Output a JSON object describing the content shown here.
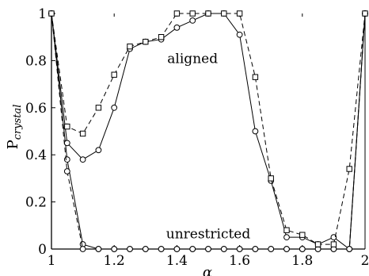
{
  "chart_data": {
    "type": "line",
    "xlabel": "α",
    "ylabel_main": "P",
    "ylabel_sub": "crystal",
    "xlim": [
      1,
      2
    ],
    "ylim": [
      0,
      1
    ],
    "x_ticks": [
      "1",
      "1.2",
      "1.4",
      "1.6",
      "1.8",
      "2"
    ],
    "y_ticks": [
      "0",
      "0.2",
      "0.4",
      "0.6",
      "0.8",
      "1"
    ],
    "grid": false,
    "annotations": [
      {
        "text": "aligned",
        "x": 1.45,
        "y": 0.79
      },
      {
        "text": "unrestricted",
        "x": 1.5,
        "y": 0.045
      }
    ],
    "series": [
      {
        "marker": "circle",
        "style": "solid",
        "x": [
          1.0,
          1.05,
          1.1,
          1.15,
          1.2,
          1.25,
          1.3,
          1.35,
          1.4,
          1.45,
          1.5,
          1.55,
          1.6,
          1.65,
          1.7,
          1.75,
          1.8,
          1.85,
          1.9,
          1.95,
          2.0
        ],
        "y": [
          1.0,
          0.38,
          0.02,
          0,
          0,
          0,
          0,
          0,
          0,
          0,
          0,
          0,
          0,
          0,
          0,
          0,
          0,
          0,
          0,
          0,
          1.0
        ]
      },
      {
        "marker": "circle",
        "style": "dashed",
        "x": [
          1.0,
          1.05,
          1.1,
          1.15,
          1.2,
          1.25,
          1.3,
          1.35,
          1.4,
          1.45,
          1.5,
          1.55,
          1.6,
          1.65,
          1.7,
          1.75,
          1.8,
          1.85,
          1.9,
          1.95,
          2.0
        ],
        "y": [
          1.0,
          0.33,
          0.0,
          0,
          0,
          0,
          0,
          0,
          0,
          0,
          0,
          0,
          0,
          0,
          0,
          0,
          0,
          0,
          0,
          0,
          1.0
        ]
      },
      {
        "marker": "circle",
        "style": "solid",
        "x": [
          1.0,
          1.05,
          1.1,
          1.15,
          1.2,
          1.25,
          1.3,
          1.35,
          1.4,
          1.45,
          1.5,
          1.55,
          1.6,
          1.65,
          1.7,
          1.75,
          1.8,
          1.85,
          1.9,
          1.95,
          2.0
        ],
        "y": [
          1.0,
          0.45,
          0.38,
          0.42,
          0.6,
          0.85,
          0.88,
          0.89,
          0.94,
          0.97,
          1.0,
          1.0,
          0.91,
          0.5,
          0.29,
          0.05,
          0.05,
          0.02,
          0.05,
          0.0,
          1.0
        ]
      },
      {
        "marker": "square",
        "style": "dashed",
        "x": [
          1.0,
          1.05,
          1.1,
          1.15,
          1.2,
          1.25,
          1.3,
          1.35,
          1.4,
          1.45,
          1.5,
          1.55,
          1.6,
          1.65,
          1.7,
          1.75,
          1.8,
          1.85,
          1.9,
          1.95,
          2.0
        ],
        "y": [
          1.0,
          0.52,
          0.49,
          0.6,
          0.74,
          0.86,
          0.88,
          0.9,
          1.0,
          1.0,
          1.0,
          1.0,
          1.0,
          0.73,
          0.3,
          0.08,
          0.06,
          0.02,
          0.02,
          0.34,
          1.0
        ]
      }
    ]
  }
}
